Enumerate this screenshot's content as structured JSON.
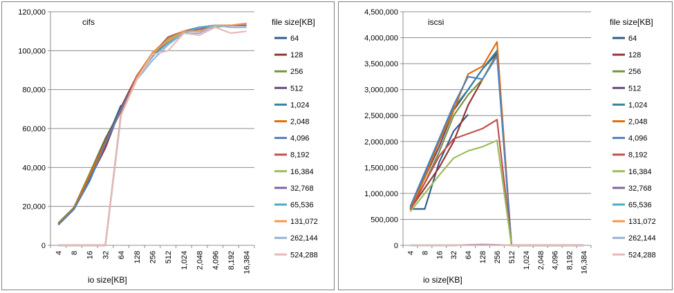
{
  "chart_data": [
    {
      "type": "line",
      "title": "cifs",
      "xlabel": "io size[KB]",
      "ylabel": "",
      "ylim": [
        0,
        120000
      ],
      "yticks": [
        "0",
        "20,000",
        "40,000",
        "60,000",
        "80,000",
        "100,000",
        "120,000"
      ],
      "categories": [
        "4",
        "8",
        "16",
        "32",
        "64",
        "128",
        "256",
        "512",
        "1,024",
        "2,048",
        "4,096",
        "8,192",
        "16,384"
      ],
      "legend_title": "file size[KB]",
      "legend_position": "right",
      "grid": "horizontal",
      "series": [
        {
          "name": "64",
          "color": "#2e5c8a",
          "values": [
            11000,
            19000,
            35000,
            53000,
            72000,
            null,
            null,
            null,
            null,
            null,
            null,
            null,
            null
          ]
        },
        {
          "name": "128",
          "color": "#943634",
          "values": [
            10500,
            18500,
            34000,
            50000,
            71000,
            87000,
            null,
            null,
            null,
            null,
            null,
            null,
            null
          ]
        },
        {
          "name": "256",
          "color": "#77933c",
          "values": [
            11500,
            19500,
            37000,
            55000,
            70000,
            86000,
            97000,
            null,
            null,
            null,
            null,
            null,
            null
          ]
        },
        {
          "name": "512",
          "color": "#604a7b",
          "values": [
            11000,
            19000,
            36000,
            54000,
            70000,
            86000,
            98000,
            105000,
            null,
            null,
            null,
            null,
            null
          ]
        },
        {
          "name": "1,024",
          "color": "#31859c",
          "values": [
            10500,
            19000,
            35000,
            53000,
            69000,
            86000,
            98000,
            106000,
            110000,
            null,
            null,
            null,
            null
          ]
        },
        {
          "name": "2,048",
          "color": "#e46c0a",
          "values": [
            11000,
            19000,
            36000,
            53000,
            69000,
            87000,
            99000,
            106000,
            110000,
            112000,
            null,
            null,
            null
          ]
        },
        {
          "name": "4,096",
          "color": "#4f81bd",
          "values": [
            10500,
            18500,
            33000,
            52000,
            70000,
            86000,
            98000,
            105000,
            110000,
            112000,
            113000,
            null,
            null
          ]
        },
        {
          "name": "8,192",
          "color": "#c0504d",
          "values": [
            0,
            0,
            0,
            0,
            68000,
            87000,
            98000,
            107000,
            110000,
            111000,
            113000,
            113000,
            null
          ]
        },
        {
          "name": "16,384",
          "color": "#9bbb59",
          "values": [
            0,
            0,
            0,
            0,
            67000,
            86000,
            98000,
            106000,
            110000,
            111000,
            112000,
            113000,
            113000
          ]
        },
        {
          "name": "32,768",
          "color": "#8064a2",
          "values": [
            0,
            0,
            0,
            0,
            67000,
            86000,
            97000,
            105000,
            110000,
            111000,
            113000,
            113000,
            113000
          ]
        },
        {
          "name": "65,536",
          "color": "#4bacc6",
          "values": [
            0,
            0,
            0,
            0,
            67000,
            86000,
            97000,
            104000,
            109000,
            112000,
            113000,
            113000,
            114000
          ]
        },
        {
          "name": "131,072",
          "color": "#f79646",
          "values": [
            0,
            0,
            0,
            0,
            67000,
            86000,
            99000,
            105000,
            110000,
            110000,
            113000,
            113000,
            114000
          ]
        },
        {
          "name": "262,144",
          "color": "#95b3d7",
          "values": [
            0,
            0,
            0,
            0,
            67000,
            85000,
            95000,
            103000,
            109000,
            109000,
            113000,
            112000,
            112000
          ]
        },
        {
          "name": "524,288",
          "color": "#e6b9b8",
          "values": [
            0,
            0,
            0,
            0,
            67000,
            85000,
            98000,
            100000,
            109000,
            108000,
            112000,
            109000,
            110000
          ]
        }
      ]
    },
    {
      "type": "line",
      "title": "iscsi",
      "xlabel": "io size[KB]",
      "ylabel": "",
      "ylim": [
        0,
        4500000
      ],
      "yticks": [
        "0",
        "500,000",
        "1,000,000",
        "1,500,000",
        "2,000,000",
        "2,500,000",
        "3,000,000",
        "3,500,000",
        "4,000,000",
        "4,500,000"
      ],
      "categories": [
        "4",
        "8",
        "16",
        "32",
        "64",
        "128",
        "256",
        "512",
        "1,024",
        "2,048",
        "4,096",
        "8,192",
        "16,384"
      ],
      "legend_title": "file size[KB]",
      "legend_position": "right",
      "grid": "horizontal",
      "series": [
        {
          "name": "64",
          "color": "#2e5c8a",
          "values": [
            700000,
            700000,
            1600000,
            2200000,
            2520000,
            null,
            null,
            null,
            null,
            null,
            null,
            null,
            null
          ]
        },
        {
          "name": "128",
          "color": "#943634",
          "values": [
            700000,
            1100000,
            1500000,
            2000000,
            2700000,
            3200000,
            null,
            null,
            null,
            null,
            null,
            null,
            null
          ]
        },
        {
          "name": "256",
          "color": "#77933c",
          "values": [
            700000,
            1200000,
            1800000,
            2500000,
            2900000,
            3200000,
            3700000,
            null,
            null,
            null,
            null,
            null,
            null
          ]
        },
        {
          "name": "512",
          "color": "#604a7b",
          "values": [
            700000,
            1300000,
            1900000,
            2600000,
            3000000,
            3400000,
            3700000,
            0,
            0,
            0,
            0,
            0,
            0
          ]
        },
        {
          "name": "1,024",
          "color": "#31859c",
          "values": [
            720000,
            1350000,
            2000000,
            2650000,
            3000000,
            3400000,
            3750000,
            0,
            0,
            0,
            0,
            0,
            0
          ]
        },
        {
          "name": "2,048",
          "color": "#e46c0a",
          "values": [
            700000,
            1300000,
            2000000,
            2600000,
            3300000,
            3450000,
            3920000,
            0,
            0,
            0,
            0,
            0,
            0
          ]
        },
        {
          "name": "4,096",
          "color": "#4f81bd",
          "values": [
            750000,
            1400000,
            2050000,
            2700000,
            3250000,
            3200000,
            3650000,
            0,
            0,
            0,
            0,
            0,
            0
          ]
        },
        {
          "name": "8,192",
          "color": "#c0504d",
          "values": [
            680000,
            1200000,
            1720000,
            2050000,
            2150000,
            2250000,
            2420000,
            0,
            0,
            0,
            0,
            0,
            0
          ]
        },
        {
          "name": "16,384",
          "color": "#9bbb59",
          "values": [
            650000,
            1000000,
            1350000,
            1680000,
            1820000,
            1900000,
            2020000,
            0,
            0,
            0,
            0,
            0,
            0
          ]
        },
        {
          "name": "32,768",
          "color": "#8064a2",
          "values": [
            0,
            0,
            0,
            0,
            10000,
            15000,
            10000,
            0,
            0,
            0,
            0,
            0,
            0
          ]
        },
        {
          "name": "65,536",
          "color": "#4bacc6",
          "values": [
            0,
            0,
            0,
            0,
            5000,
            5000,
            5000,
            0,
            0,
            0,
            0,
            0,
            0
          ]
        },
        {
          "name": "131,072",
          "color": "#f79646",
          "values": [
            0,
            0,
            0,
            0,
            5000,
            5000,
            5000,
            0,
            0,
            0,
            0,
            0,
            0
          ]
        },
        {
          "name": "262,144",
          "color": "#95b3d7",
          "values": [
            0,
            0,
            0,
            0,
            5000,
            5000,
            5000,
            0,
            0,
            0,
            0,
            0,
            0
          ]
        },
        {
          "name": "524,288",
          "color": "#e6b9b8",
          "values": [
            0,
            0,
            0,
            0,
            5000,
            5000,
            5000,
            0,
            0,
            0,
            0,
            0,
            0
          ]
        }
      ]
    }
  ]
}
